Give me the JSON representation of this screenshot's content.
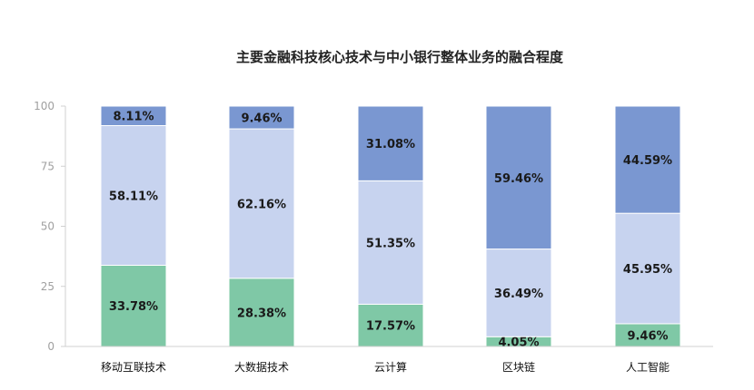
{
  "chart_data": {
    "type": "bar",
    "stacked": true,
    "title": "主要金融科技核心技术与中小银行整体业务的融合程度",
    "categories": [
      "移动互联技术",
      "大数据技术",
      "云计算",
      "区块链",
      "人工智能"
    ],
    "series": [
      {
        "color": "#7fc8a6",
        "values": [
          33.78,
          28.38,
          17.57,
          4.05,
          9.46
        ]
      },
      {
        "color": "#c7d3ef",
        "values": [
          58.11,
          62.16,
          51.35,
          36.49,
          45.95
        ]
      },
      {
        "color": "#7a97d1",
        "values": [
          8.11,
          9.46,
          31.08,
          59.46,
          44.59
        ]
      }
    ],
    "data_labels": [
      [
        "33.78%",
        "28.38%",
        "17.57%",
        "4.05%",
        "9.46%"
      ],
      [
        "58.11%",
        "62.16%",
        "51.35%",
        "36.49%",
        "45.95%"
      ],
      [
        "8.11%",
        "9.46%",
        "31.08%",
        "59.46%",
        "44.59%"
      ]
    ],
    "yticks": [
      "0",
      "25",
      "50",
      "75",
      "100"
    ],
    "ylim": [
      0,
      100
    ],
    "grid": false,
    "legend": "none"
  }
}
